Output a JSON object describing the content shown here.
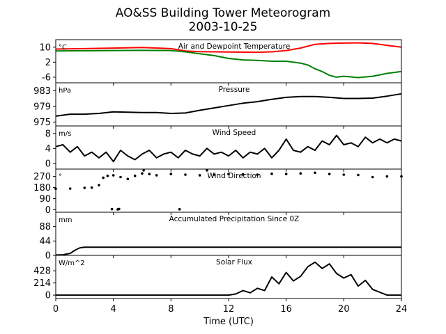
{
  "figure": {
    "title_line1": "AO&SS Building Tower Meteorogram",
    "title_line2": "2003-10-25",
    "xlabel": "Time (UTC)",
    "xticks": [
      0,
      4,
      8,
      12,
      16,
      20,
      24
    ],
    "xlim": [
      0,
      24
    ]
  },
  "chart_data": [
    {
      "type": "line",
      "title": "Air and Dewpoint Temperature",
      "unit": "°C",
      "ylim": [
        -9,
        14
      ],
      "yticks": [
        10,
        2,
        -6
      ],
      "series": [
        {
          "name": "Air Temperature",
          "color": "#ff0000",
          "x": [
            0,
            2,
            4,
            6,
            8,
            9,
            10,
            12,
            14,
            15,
            16,
            17,
            18,
            19,
            20,
            21,
            22,
            23,
            24
          ],
          "y": [
            9,
            9.2,
            9.5,
            9.8,
            9.2,
            8,
            7.6,
            7.4,
            7.3,
            7.5,
            8.2,
            9.5,
            11.5,
            12,
            12.2,
            12.3,
            12,
            11,
            10
          ]
        },
        {
          "name": "Dewpoint",
          "color": "#008000",
          "x": [
            0,
            2,
            4,
            6,
            8,
            9,
            10,
            11,
            12,
            13,
            14,
            15,
            16,
            17,
            17.5,
            18,
            18.5,
            19,
            19.5,
            20,
            21,
            22,
            23,
            24
          ],
          "y": [
            8,
            8.1,
            8.2,
            8.3,
            8.2,
            7.5,
            6.5,
            5.5,
            4,
            3.2,
            3,
            2.5,
            2.5,
            1.5,
            0.5,
            -1.5,
            -3,
            -5,
            -6,
            -5.5,
            -6.2,
            -5.5,
            -4,
            -3
          ]
        }
      ]
    },
    {
      "type": "line",
      "title": "Pressure",
      "unit": "hPa",
      "ylim": [
        974,
        985
      ],
      "yticks": [
        983,
        979,
        975
      ],
      "series": [
        {
          "name": "Pressure",
          "color": "#000000",
          "x": [
            0,
            1,
            2,
            3,
            4,
            5,
            6,
            7,
            8,
            9,
            10,
            11,
            12,
            13,
            14,
            15,
            16,
            17,
            18,
            19,
            20,
            21,
            22,
            23,
            24
          ],
          "y": [
            976.5,
            977,
            977,
            977.2,
            977.6,
            977.5,
            977.4,
            977.4,
            977.2,
            977.3,
            978,
            978.6,
            979.2,
            979.8,
            980.2,
            980.8,
            981.3,
            981.5,
            981.5,
            981.3,
            981,
            981,
            981.1,
            981.6,
            982.2
          ]
        }
      ]
    },
    {
      "type": "line",
      "title": "Wind Speed",
      "unit": "m/s",
      "ylim": [
        -1.5,
        10
      ],
      "yticks": [
        8,
        4,
        0
      ],
      "series": [
        {
          "name": "Wind Speed",
          "color": "#000000",
          "x": [
            0,
            0.5,
            1,
            1.5,
            2,
            2.5,
            3,
            3.5,
            4,
            4.5,
            5,
            5.5,
            6,
            6.5,
            7,
            7.5,
            8,
            8.5,
            9,
            9.5,
            10,
            10.5,
            11,
            11.5,
            12,
            12.5,
            13,
            13.5,
            14,
            14.5,
            15,
            15.5,
            16,
            16.5,
            17,
            17.5,
            18,
            18.5,
            19,
            19.5,
            20,
            20.5,
            21,
            21.5,
            22,
            22.5,
            23,
            23.5,
            24
          ],
          "y": [
            4.5,
            5,
            3,
            4.5,
            2,
            3,
            1.5,
            3,
            0.5,
            3.5,
            2,
            1,
            2.5,
            3.5,
            1.5,
            2.5,
            3,
            1.5,
            3.5,
            2.5,
            2,
            4,
            2.5,
            3,
            2,
            3.5,
            1.5,
            3,
            2.5,
            4,
            1.5,
            3.5,
            6.5,
            3.5,
            3,
            4.5,
            3.5,
            6,
            5,
            7.5,
            5,
            5.5,
            4.5,
            7,
            5.5,
            6.5,
            5.5,
            6.5,
            6
          ]
        }
      ]
    },
    {
      "type": "scatter",
      "title": "Wind Direction",
      "unit": "°",
      "ylim": [
        -20,
        330
      ],
      "yticks": [
        270,
        180,
        90,
        0
      ],
      "series": [
        {
          "name": "Wind Direction",
          "color": "#000000",
          "x": [
            0,
            1,
            2,
            2.5,
            3,
            3.3,
            3.6,
            4,
            4.5,
            5,
            5.5,
            6,
            6.5,
            7,
            8,
            9,
            10,
            11,
            12,
            13,
            14,
            15,
            16,
            17,
            18,
            19,
            20,
            21,
            22,
            23,
            24,
            3.9,
            4.3,
            4.4,
            8.6,
            6.1,
            10.5
          ],
          "y": [
            170,
            172,
            178,
            180,
            200,
            260,
            275,
            280,
            265,
            250,
            275,
            295,
            290,
            280,
            290,
            285,
            280,
            285,
            290,
            288,
            285,
            292,
            290,
            295,
            300,
            290,
            285,
            282,
            265,
            270,
            270,
            5,
            3,
            6,
            4,
            320,
            320
          ]
        }
      ]
    },
    {
      "type": "line",
      "title": "Accumulated Precipitation Since 0Z",
      "unit": "mm",
      "ylim": [
        0,
        132
      ],
      "yticks": [
        88,
        44,
        0
      ],
      "series": [
        {
          "name": "Accumulated Precipitation",
          "color": "#000000",
          "x": [
            0,
            0.5,
            1,
            1.3,
            1.6,
            1.8,
            2,
            24
          ],
          "y": [
            1,
            2,
            6,
            15,
            22,
            24,
            25,
            25
          ]
        }
      ]
    },
    {
      "type": "line",
      "title": "Solar Flux",
      "unit": "W/m^2",
      "ylim": [
        -60,
        700
      ],
      "yticks": [
        428,
        214,
        0
      ],
      "series": [
        {
          "name": "Solar Flux",
          "color": "#000000",
          "x": [
            0,
            12,
            12.5,
            13,
            13.5,
            14,
            14.5,
            15,
            15.5,
            16,
            16.5,
            17,
            17.5,
            18,
            18.5,
            19,
            19.5,
            20,
            20.5,
            21,
            21.5,
            22,
            22.5,
            23,
            24
          ],
          "y": [
            0,
            0,
            20,
            80,
            40,
            120,
            80,
            320,
            200,
            400,
            250,
            330,
            500,
            580,
            470,
            550,
            380,
            300,
            360,
            160,
            260,
            100,
            50,
            0,
            0
          ]
        }
      ]
    }
  ]
}
